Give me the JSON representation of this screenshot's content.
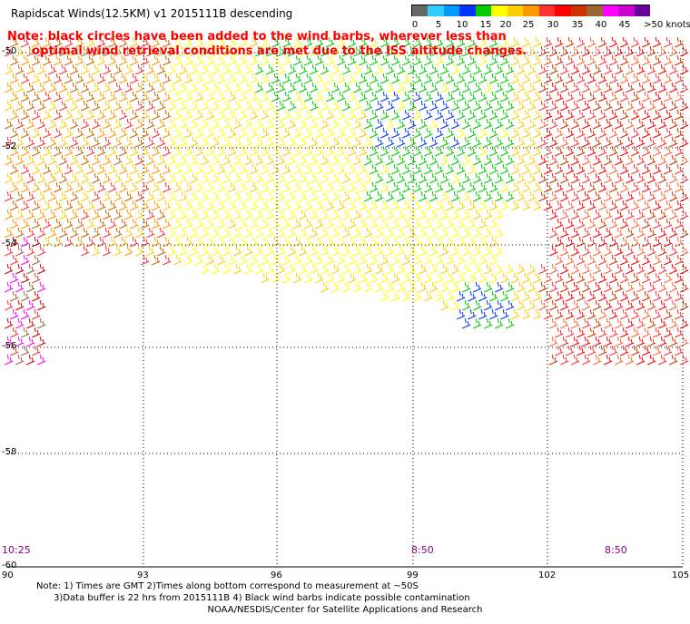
{
  "header": {
    "title": "Rapidscat Winds(12.5KM)  v1  2015111B descending"
  },
  "note": {
    "line1": "Note: black circles have been added to the wind barbs, wherever less than",
    "line2": "      optimal wind retrieval conditions are met due to the ISS altitude changes."
  },
  "legend": {
    "colors": [
      "#666666",
      "#33ccff",
      "#0099ff",
      "#0033ff",
      "#00cc00",
      "#ffff00",
      "#ffcc00",
      "#ff9900",
      "#ff3333",
      "#ff0000",
      "#cc3300",
      "#996633",
      "#ff00ff",
      "#cc00cc",
      "#660099"
    ],
    "labels": [
      "0",
      "5",
      "10",
      "15",
      "20",
      "25",
      "30",
      "35",
      "40",
      "45",
      ">50 knots"
    ]
  },
  "axes": {
    "lon_ticks": [
      "90",
      "93",
      "96",
      "99",
      "102",
      "105"
    ],
    "lat_ticks": [
      "-50",
      "-52",
      "-54",
      "-56",
      "-58",
      "-60"
    ]
  },
  "times": [
    "10:25",
    "8:50",
    "8:50"
  ],
  "footer": {
    "line1": "Note: 1) Times are GMT 2)Times along bottom correspond to measurement at ~50S",
    "line2": "      3)Data buffer is 22 hrs from 2015111B 4) Black wind barbs indicate possible contamination",
    "credit": "NOAA/NESDIS/Center for Satellite Applications and Research"
  }
}
